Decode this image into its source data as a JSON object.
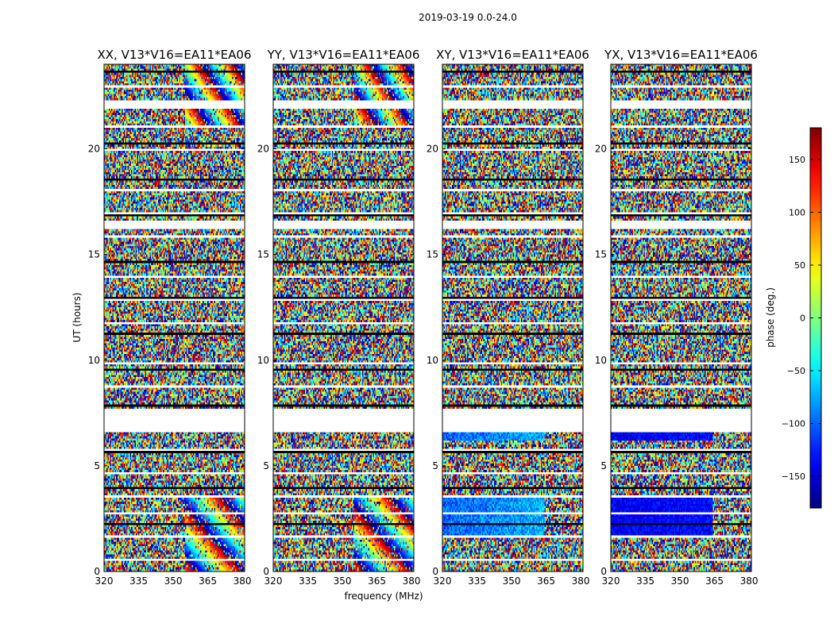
{
  "suptitle": "2019-03-19 0.0-24.0",
  "ylabel": "UT (hours)",
  "xlabel": "frequency (MHz)",
  "colorbar": {
    "label": "phase (deg.)",
    "colormap": "jet",
    "range": [
      -180,
      180
    ],
    "ticks": [
      "150",
      "100",
      "50",
      "0",
      "−50",
      "−100",
      "−150"
    ],
    "tick_values": [
      150,
      100,
      50,
      0,
      -50,
      -100,
      -150
    ]
  },
  "chart_data": [
    {
      "type": "heatmap",
      "title": "XX, V13*V16=EA11*EA06",
      "xlim": [
        320,
        381
      ],
      "ylim": [
        0,
        24
      ],
      "xticks": [
        "320",
        "335",
        "350",
        "365",
        "380"
      ],
      "xtick_values": [
        320,
        335,
        350,
        365,
        380
      ],
      "yticks": [
        "0",
        "5",
        "10",
        "15",
        "20"
      ],
      "ytick_values": [
        0,
        5,
        10,
        15,
        20
      ],
      "value_range": [
        -180,
        180
      ],
      "blank_ut_ranges": [
        [
          6.6,
          7.7
        ],
        [
          16.2,
          16.6
        ],
        [
          21.9,
          22.3
        ],
        [
          3.5,
          3.6
        ],
        [
          1.6,
          1.65
        ]
      ],
      "pattern": "noisy wrapped phase, fringes in upper band"
    },
    {
      "type": "heatmap",
      "title": "YY, V13*V16=EA11*EA06",
      "xlim": [
        320,
        381
      ],
      "ylim": [
        0,
        24
      ],
      "xticks": [
        "320",
        "335",
        "350",
        "365",
        "380"
      ],
      "xtick_values": [
        320,
        335,
        350,
        365,
        380
      ],
      "yticks": [
        "0",
        "5",
        "10",
        "15",
        "20"
      ],
      "ytick_values": [
        0,
        5,
        10,
        15,
        20
      ],
      "value_range": [
        -180,
        180
      ],
      "blank_ut_ranges": [
        [
          6.6,
          7.7
        ],
        [
          16.2,
          16.6
        ],
        [
          21.9,
          22.3
        ],
        [
          3.5,
          3.6
        ],
        [
          1.6,
          1.65
        ]
      ],
      "pattern": "noisy wrapped phase, fringes in upper band"
    },
    {
      "type": "heatmap",
      "title": "XY, V13*V16=EA11*EA06",
      "xlim": [
        320,
        381
      ],
      "ylim": [
        0,
        24
      ],
      "xticks": [
        "320",
        "335",
        "350",
        "365",
        "380"
      ],
      "xtick_values": [
        320,
        335,
        350,
        365,
        380
      ],
      "yticks": [
        "0",
        "5",
        "10",
        "15",
        "20"
      ],
      "ytick_values": [
        0,
        5,
        10,
        15,
        20
      ],
      "value_range": [
        -180,
        180
      ],
      "blank_ut_ranges": [
        [
          6.6,
          7.7
        ],
        [
          16.2,
          16.6
        ],
        [
          21.9,
          22.3
        ],
        [
          3.5,
          3.6
        ],
        [
          1.6,
          1.65
        ]
      ],
      "pattern": "noisy wrapped phase, coherent cyan-blue block near 1.7-3.6 h and 6.2-6.6 h"
    },
    {
      "type": "heatmap",
      "title": "YX, V13*V16=EA11*EA06",
      "xlim": [
        320,
        381
      ],
      "ylim": [
        0,
        24
      ],
      "xticks": [
        "320",
        "335",
        "350",
        "365",
        "380"
      ],
      "xtick_values": [
        320,
        335,
        350,
        365,
        380
      ],
      "yticks": [
        "0",
        "5",
        "10",
        "15",
        "20"
      ],
      "ytick_values": [
        0,
        5,
        10,
        15,
        20
      ],
      "value_range": [
        -180,
        180
      ],
      "blank_ut_ranges": [
        [
          6.6,
          7.7
        ],
        [
          16.2,
          16.6
        ],
        [
          21.9,
          22.3
        ],
        [
          3.5,
          3.6
        ],
        [
          1.6,
          1.65
        ]
      ],
      "pattern": "noisy wrapped phase, coherent blue block near 1.7-3.6 h and 6.2-6.6 h"
    }
  ]
}
